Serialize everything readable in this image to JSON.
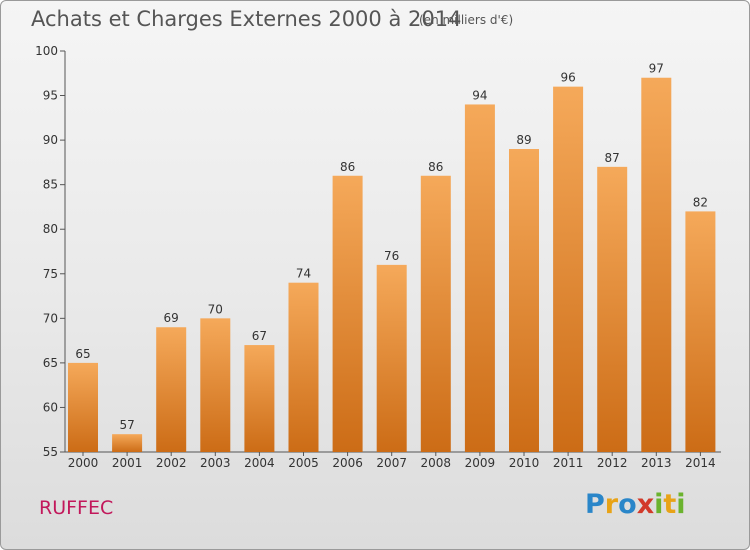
{
  "header": {
    "title": "Achats et Charges Externes 2000 à 2014",
    "unit": "(en milliers d'€)"
  },
  "footer": {
    "place": "RUFFEC",
    "brand_letters": [
      {
        "ch": "P",
        "color": "#2a86c9"
      },
      {
        "ch": "r",
        "color": "#e8a317"
      },
      {
        "ch": "o",
        "color": "#2a86c9"
      },
      {
        "ch": "x",
        "color": "#d23a2a"
      },
      {
        "ch": "i",
        "color": "#6bb32e"
      },
      {
        "ch": "t",
        "color": "#e8a317"
      },
      {
        "ch": "i",
        "color": "#6bb32e"
      }
    ]
  },
  "chart_data": {
    "type": "bar",
    "categories": [
      "2000",
      "2001",
      "2002",
      "2003",
      "2004",
      "2005",
      "2006",
      "2007",
      "2008",
      "2009",
      "2010",
      "2011",
      "2012",
      "2013",
      "2014"
    ],
    "values": [
      65,
      57,
      69,
      70,
      67,
      74,
      86,
      76,
      86,
      94,
      89,
      96,
      87,
      97,
      82
    ],
    "ylim": [
      55,
      100
    ],
    "yticks": [
      55,
      60,
      65,
      70,
      75,
      80,
      85,
      90,
      95,
      100
    ],
    "bar_color_top": "#f5a95a",
    "bar_color_bottom": "#cc6c16",
    "grid": false
  }
}
